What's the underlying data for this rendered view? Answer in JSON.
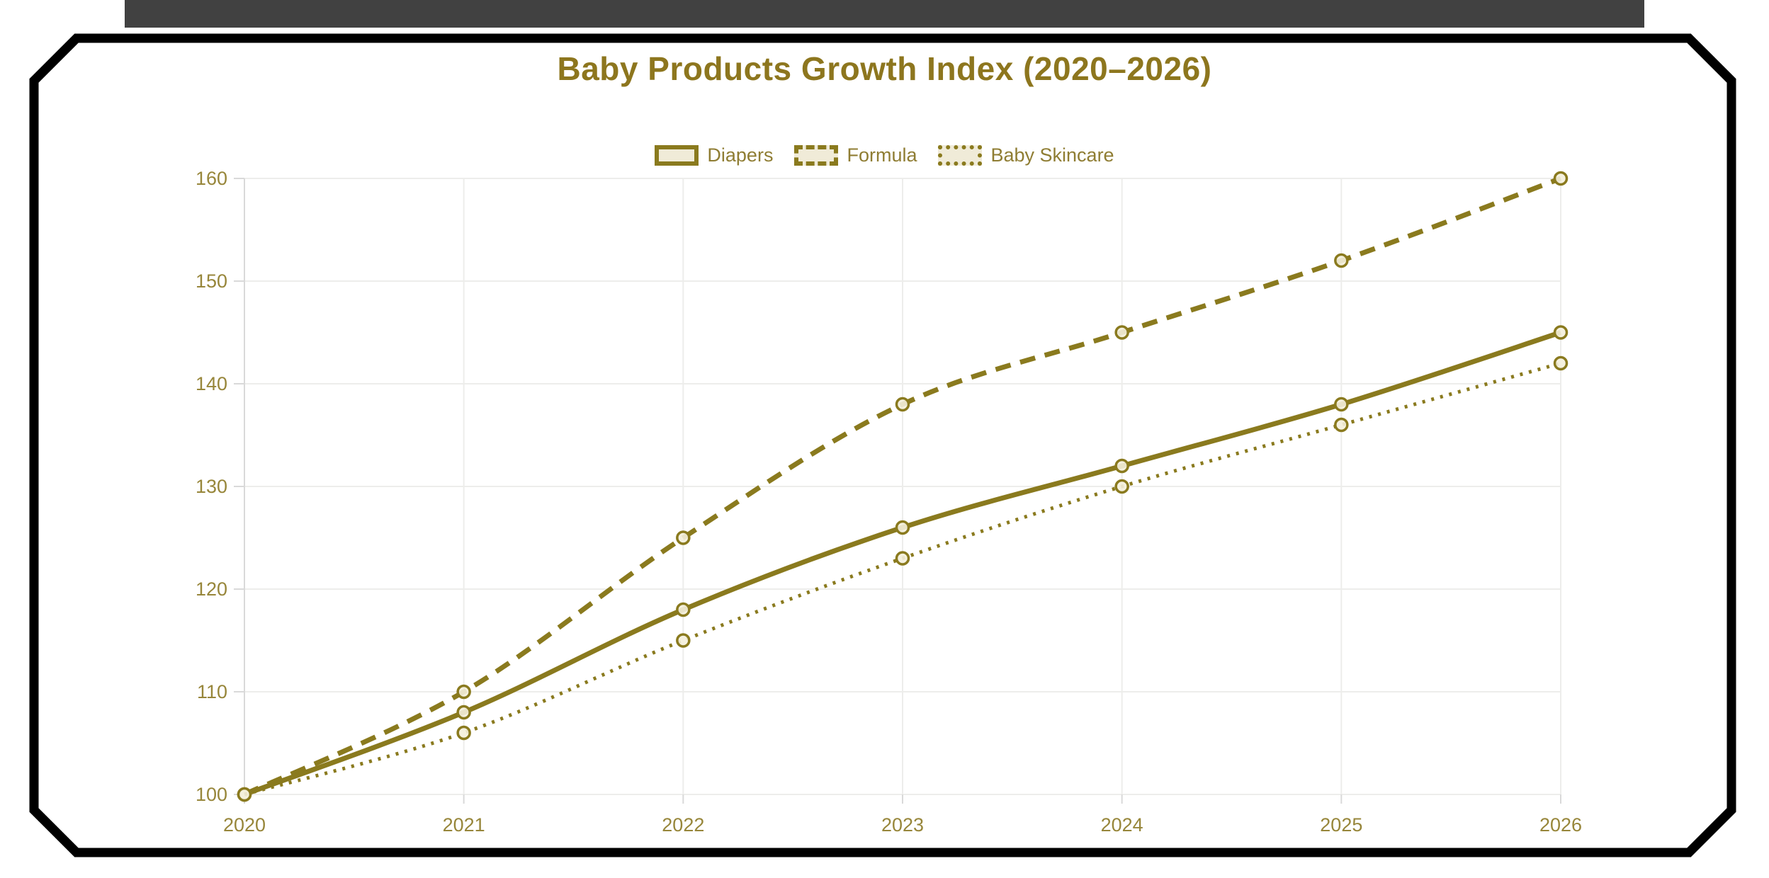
{
  "title": "Baby Products Growth Index (2020–2026)",
  "legend": {
    "items": [
      {
        "label": "Diapers",
        "line_style": "solid"
      },
      {
        "label": "Formula",
        "line_style": "dashed"
      },
      {
        "label": "Baby Skincare",
        "line_style": "dotted"
      }
    ]
  },
  "chart_data": {
    "type": "line",
    "title": "Baby Products Growth Index (2020–2026)",
    "x": [
      2020,
      2021,
      2022,
      2023,
      2024,
      2025,
      2026
    ],
    "series": [
      {
        "name": "Diapers",
        "line_style": "solid",
        "values": [
          100,
          108,
          118,
          126,
          132,
          138,
          145
        ]
      },
      {
        "name": "Formula",
        "line_style": "dashed",
        "values": [
          100,
          110,
          125,
          138,
          145,
          152,
          160
        ]
      },
      {
        "name": "Baby Skincare",
        "line_style": "dotted",
        "values": [
          100,
          106,
          115,
          123,
          130,
          136,
          142
        ]
      }
    ],
    "xlabel": "",
    "ylabel": "",
    "ylim": [
      100,
      160
    ],
    "y_ticks": [
      100,
      110,
      120,
      130,
      140,
      150,
      160
    ],
    "grid": true,
    "legend_position": "top",
    "curve_tension": true
  },
  "colors": {
    "series": "#8a7a1e",
    "title_text": "#8d761e",
    "tick_text": "#97863a",
    "legend_text": "#8f7d33",
    "grid_line": "#ededeb",
    "axis_line": "#d9d9d9",
    "point_fill": "#f4efdc",
    "swatch_fill": "#f0ebd8",
    "frame": "#000000",
    "top_band": "#414141",
    "background": "#ffffff"
  }
}
